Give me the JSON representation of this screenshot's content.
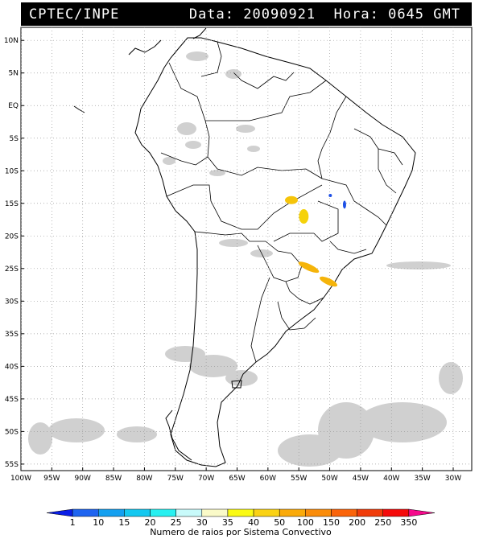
{
  "header": {
    "source": "CPTEC/INPE",
    "date_label": "Data:",
    "date_value": "20090921",
    "hour_label": "Hora:",
    "hour_value": "0645",
    "tz": "GMT"
  },
  "map": {
    "lat_labels": [
      "10N",
      "5N",
      "EQ",
      "5S",
      "10S",
      "15S",
      "20S",
      "25S",
      "30S",
      "35S",
      "40S",
      "45S",
      "50S",
      "55S"
    ],
    "lon_labels": [
      "100W",
      "95W",
      "90W",
      "85W",
      "80W",
      "75W",
      "70W",
      "65W",
      "60W",
      "55W",
      "50W",
      "45W",
      "40W",
      "35W",
      "30W"
    ],
    "lon_range": [
      -100,
      -27
    ],
    "lat_range": [
      -56,
      12
    ],
    "grid": true
  },
  "legend": {
    "title": "Numero de raios por Sistema Convectivo",
    "labels": [
      "1",
      "10",
      "15",
      "20",
      "25",
      "30",
      "35",
      "40",
      "50",
      "100",
      "150",
      "200",
      "250",
      "350"
    ],
    "colors": [
      "#0a1ee6",
      "#1e64f0",
      "#14a0f0",
      "#14c8f0",
      "#28f0f0",
      "#c8fafa",
      "#fafac8",
      "#fafa14",
      "#fad214",
      "#faaa0a",
      "#fa8c0a",
      "#fa640a",
      "#f03c0a",
      "#f50a0a",
      "#f50a8c"
    ]
  },
  "lightning": [
    {
      "lon": -56.2,
      "lat": -14.5,
      "rx": 8,
      "ry": 5,
      "color": "#f5c40a"
    },
    {
      "lon": -54.2,
      "lat": -17.0,
      "rx": 6,
      "ry": 9,
      "color": "#f5d20a"
    },
    {
      "lon": -53.4,
      "lat": -24.8,
      "rx": 14,
      "ry": 4,
      "color": "#f5b40a"
    },
    {
      "lon": -50.2,
      "lat": -27.0,
      "rx": 12,
      "ry": 4,
      "color": "#f5b40a"
    },
    {
      "lon": -47.6,
      "lat": -15.2,
      "rx": 2,
      "ry": 5,
      "color": "#1e50e6"
    },
    {
      "lon": -49.9,
      "lat": -13.8,
      "rx": 2,
      "ry": 2,
      "color": "#1e50e6"
    }
  ]
}
